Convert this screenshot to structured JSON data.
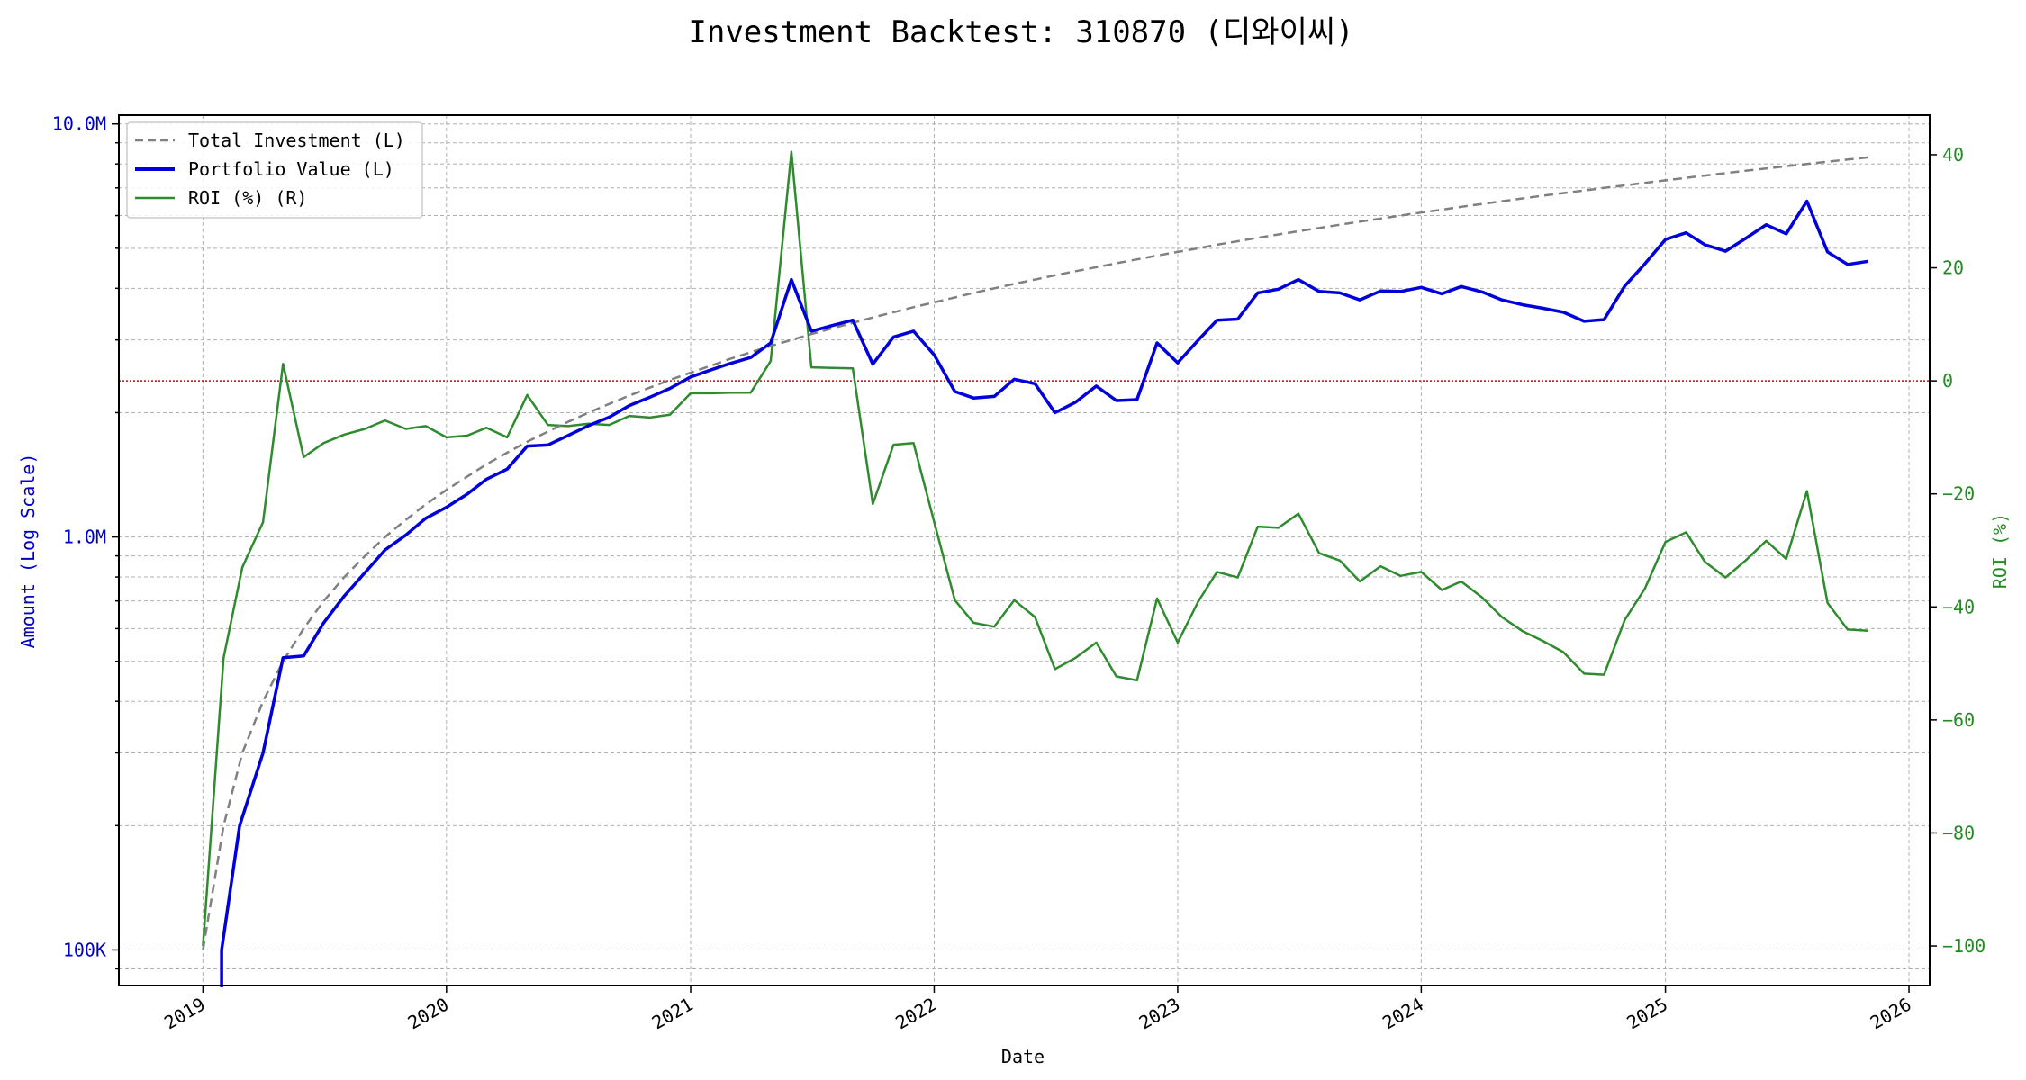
{
  "chart_data": {
    "type": "line",
    "title": "Investment Backtest: 310870 (디와이씨)",
    "xlabel": "Date",
    "ylabel_left": "Amount (Log Scale)",
    "ylabel_right": "ROI (%)",
    "y_left_scale": "log",
    "y_left_range": [
      82000,
      10500000
    ],
    "y_left_ticks": [
      {
        "value": 100000,
        "label": "100K"
      },
      {
        "value": 1000000,
        "label": "1.0M"
      },
      {
        "value": 10000000,
        "label": "10.0M"
      }
    ],
    "y_right_range": [
      -107,
      47
    ],
    "y_right_ticks": [
      {
        "value": 40,
        "label": "40"
      },
      {
        "value": 20,
        "label": "20"
      },
      {
        "value": 0,
        "label": "0"
      },
      {
        "value": -20,
        "label": "−20"
      },
      {
        "value": -40,
        "label": "−40"
      },
      {
        "value": -60,
        "label": "−60"
      },
      {
        "value": -80,
        "label": "−80"
      },
      {
        "value": -100,
        "label": "−100"
      }
    ],
    "x_range": [
      "2018-08-28",
      "2026-02-01"
    ],
    "x_ticks": [
      "2019",
      "2020",
      "2021",
      "2022",
      "2023",
      "2024",
      "2025",
      "2026"
    ],
    "grid": true,
    "legend_position": "top-left",
    "reference_line": {
      "axis": "right",
      "value": 0,
      "color": "#cc0000",
      "style": "dotted"
    },
    "colors": {
      "total_investment": "#808080",
      "portfolio_value": "#0000dd",
      "roi": "#2e8b2e",
      "left_axis": "#0000cc",
      "right_axis": "#228b22"
    },
    "series": [
      {
        "name": "Total Investment (L)",
        "axis": "left",
        "style": "dashed",
        "points": [
          [
            "2019-01-01",
            100000
          ],
          [
            "2019-02-01",
            200000
          ],
          [
            "2019-03-01",
            300000
          ],
          [
            "2019-04-01",
            400000
          ],
          [
            "2019-05-01",
            500000
          ],
          [
            "2019-06-01",
            600000
          ],
          [
            "2019-07-01",
            700000
          ],
          [
            "2019-08-01",
            800000
          ],
          [
            "2019-09-01",
            900000
          ],
          [
            "2019-10-01",
            1000000
          ],
          [
            "2019-11-01",
            1100000
          ],
          [
            "2019-12-01",
            1200000
          ],
          [
            "2020-01-01",
            1300000
          ],
          [
            "2020-02-01",
            1400000
          ],
          [
            "2020-03-01",
            1500000
          ],
          [
            "2020-04-01",
            1600000
          ],
          [
            "2020-05-01",
            1700000
          ],
          [
            "2020-06-01",
            1800000
          ],
          [
            "2020-07-01",
            1900000
          ],
          [
            "2020-08-01",
            2000000
          ],
          [
            "2020-09-01",
            2100000
          ],
          [
            "2020-10-01",
            2200000
          ],
          [
            "2020-11-01",
            2300000
          ],
          [
            "2020-12-01",
            2400000
          ],
          [
            "2021-01-01",
            2500000
          ],
          [
            "2021-02-01",
            2600000
          ],
          [
            "2021-03-01",
            2700000
          ],
          [
            "2021-04-01",
            2800000
          ],
          [
            "2021-05-01",
            2900000
          ],
          [
            "2021-06-01",
            3000000
          ],
          [
            "2021-07-01",
            3100000
          ],
          [
            "2021-08-01",
            3200000
          ],
          [
            "2021-09-01",
            3300000
          ],
          [
            "2021-10-01",
            3400000
          ],
          [
            "2021-11-01",
            3500000
          ],
          [
            "2021-12-01",
            3600000
          ],
          [
            "2022-01-01",
            3700000
          ],
          [
            "2022-02-01",
            3800000
          ],
          [
            "2022-03-01",
            3900000
          ],
          [
            "2022-04-01",
            4000000
          ],
          [
            "2022-05-01",
            4100000
          ],
          [
            "2022-06-01",
            4200000
          ],
          [
            "2022-07-01",
            4300000
          ],
          [
            "2022-08-01",
            4400000
          ],
          [
            "2022-09-01",
            4500000
          ],
          [
            "2022-10-01",
            4600000
          ],
          [
            "2022-11-01",
            4700000
          ],
          [
            "2022-12-01",
            4800000
          ],
          [
            "2023-01-01",
            4900000
          ],
          [
            "2023-02-01",
            5000000
          ],
          [
            "2023-03-01",
            5100000
          ],
          [
            "2023-04-01",
            5200000
          ],
          [
            "2023-05-01",
            5300000
          ],
          [
            "2023-06-01",
            5400000
          ],
          [
            "2023-07-01",
            5500000
          ],
          [
            "2023-08-01",
            5600000
          ],
          [
            "2023-09-01",
            5700000
          ],
          [
            "2023-10-01",
            5800000
          ],
          [
            "2023-11-01",
            5900000
          ],
          [
            "2023-12-01",
            6000000
          ],
          [
            "2024-01-01",
            6100000
          ],
          [
            "2024-02-01",
            6200000
          ],
          [
            "2024-03-01",
            6300000
          ],
          [
            "2024-04-01",
            6400000
          ],
          [
            "2024-05-01",
            6500000
          ],
          [
            "2024-06-01",
            6600000
          ],
          [
            "2024-07-01",
            6700000
          ],
          [
            "2024-08-01",
            6800000
          ],
          [
            "2024-09-01",
            6900000
          ],
          [
            "2024-10-01",
            7000000
          ],
          [
            "2024-11-01",
            7100000
          ],
          [
            "2024-12-01",
            7200000
          ],
          [
            "2025-01-01",
            7300000
          ],
          [
            "2025-02-01",
            7400000
          ],
          [
            "2025-03-01",
            7500000
          ],
          [
            "2025-04-01",
            7600000
          ],
          [
            "2025-05-01",
            7700000
          ],
          [
            "2025-06-01",
            7800000
          ],
          [
            "2025-07-01",
            7900000
          ],
          [
            "2025-08-01",
            8000000
          ],
          [
            "2025-09-01",
            8100000
          ],
          [
            "2025-10-01",
            8200000
          ],
          [
            "2025-11-01",
            8300000
          ]
        ]
      },
      {
        "name": "Portfolio Value (L)",
        "axis": "left",
        "style": "solid-thick",
        "points": [
          [
            "2019-01-29",
            50000
          ],
          [
            "2019-01-29",
            100000
          ],
          [
            "2019-02-25",
            200000
          ],
          [
            "2019-04-01",
            300000
          ],
          [
            "2019-05-01",
            510000
          ],
          [
            "2019-06-01",
            515000
          ],
          [
            "2019-07-01",
            620000
          ],
          [
            "2019-08-01",
            720000
          ],
          [
            "2019-09-01",
            820000
          ],
          [
            "2019-10-01",
            930000
          ],
          [
            "2019-11-01",
            1010000
          ],
          [
            "2019-12-01",
            1110000
          ],
          [
            "2020-01-01",
            1180000
          ],
          [
            "2020-02-01",
            1270000
          ],
          [
            "2020-03-01",
            1380000
          ],
          [
            "2020-04-01",
            1460000
          ],
          [
            "2020-05-01",
            1660000
          ],
          [
            "2020-06-01",
            1670000
          ],
          [
            "2020-07-01",
            1760000
          ],
          [
            "2020-08-01",
            1860000
          ],
          [
            "2020-09-01",
            1950000
          ],
          [
            "2020-10-01",
            2080000
          ],
          [
            "2020-11-01",
            2180000
          ],
          [
            "2020-12-01",
            2290000
          ],
          [
            "2021-01-01",
            2440000
          ],
          [
            "2021-02-01",
            2540000
          ],
          [
            "2021-03-01",
            2630000
          ],
          [
            "2021-04-01",
            2720000
          ],
          [
            "2021-05-01",
            2950000
          ],
          [
            "2021-06-01",
            4200000
          ],
          [
            "2021-07-01",
            3150000
          ],
          [
            "2021-08-01",
            3250000
          ],
          [
            "2021-09-01",
            3350000
          ],
          [
            "2021-10-01",
            2620000
          ],
          [
            "2021-11-01",
            3050000
          ],
          [
            "2021-12-01",
            3150000
          ],
          [
            "2022-01-01",
            2760000
          ],
          [
            "2022-02-01",
            2250000
          ],
          [
            "2022-03-01",
            2170000
          ],
          [
            "2022-04-01",
            2190000
          ],
          [
            "2022-05-01",
            2410000
          ],
          [
            "2022-06-01",
            2350000
          ],
          [
            "2022-07-01",
            2000000
          ],
          [
            "2022-08-01",
            2120000
          ],
          [
            "2022-09-01",
            2320000
          ],
          [
            "2022-10-01",
            2140000
          ],
          [
            "2022-11-01",
            2150000
          ],
          [
            "2022-12-01",
            2950000
          ],
          [
            "2023-01-01",
            2640000
          ],
          [
            "2023-02-01",
            3000000
          ],
          [
            "2023-03-01",
            3350000
          ],
          [
            "2023-04-01",
            3370000
          ],
          [
            "2023-05-01",
            3900000
          ],
          [
            "2023-06-01",
            3980000
          ],
          [
            "2023-07-01",
            4200000
          ],
          [
            "2023-08-01",
            3930000
          ],
          [
            "2023-09-01",
            3900000
          ],
          [
            "2023-10-01",
            3750000
          ],
          [
            "2023-11-01",
            3940000
          ],
          [
            "2023-12-01",
            3930000
          ],
          [
            "2024-01-01",
            4020000
          ],
          [
            "2024-02-01",
            3880000
          ],
          [
            "2024-03-01",
            4040000
          ],
          [
            "2024-04-01",
            3920000
          ],
          [
            "2024-05-01",
            3750000
          ],
          [
            "2024-06-01",
            3650000
          ],
          [
            "2024-07-01",
            3580000
          ],
          [
            "2024-08-01",
            3500000
          ],
          [
            "2024-09-01",
            3330000
          ],
          [
            "2024-10-01",
            3360000
          ],
          [
            "2024-11-01",
            4050000
          ],
          [
            "2024-12-01",
            4580000
          ],
          [
            "2025-01-01",
            5250000
          ],
          [
            "2025-02-01",
            5450000
          ],
          [
            "2025-03-01",
            5100000
          ],
          [
            "2025-04-01",
            4920000
          ],
          [
            "2025-05-01",
            5280000
          ],
          [
            "2025-06-01",
            5700000
          ],
          [
            "2025-07-01",
            5420000
          ],
          [
            "2025-08-01",
            6500000
          ],
          [
            "2025-09-01",
            4900000
          ],
          [
            "2025-10-01",
            4570000
          ],
          [
            "2025-11-01",
            4650000
          ]
        ]
      },
      {
        "name": "ROI (%) (R)",
        "axis": "right",
        "style": "solid",
        "points": [
          [
            "2019-01-01",
            -100
          ],
          [
            "2019-02-01",
            -49
          ],
          [
            "2019-03-01",
            -33
          ],
          [
            "2019-04-01",
            -25
          ],
          [
            "2019-05-01",
            3
          ],
          [
            "2019-06-01",
            -13.5
          ],
          [
            "2019-07-01",
            -11
          ],
          [
            "2019-08-01",
            -9.5
          ],
          [
            "2019-09-01",
            -8.5
          ],
          [
            "2019-10-01",
            -7
          ],
          [
            "2019-11-01",
            -8.5
          ],
          [
            "2019-12-01",
            -8
          ],
          [
            "2020-01-01",
            -10
          ],
          [
            "2020-02-01",
            -9.7
          ],
          [
            "2020-03-01",
            -8.3
          ],
          [
            "2020-04-01",
            -10
          ],
          [
            "2020-05-01",
            -2.5
          ],
          [
            "2020-06-01",
            -7.8
          ],
          [
            "2020-07-01",
            -8
          ],
          [
            "2020-08-01",
            -7.6
          ],
          [
            "2020-09-01",
            -7.8
          ],
          [
            "2020-10-01",
            -6.2
          ],
          [
            "2020-11-01",
            -6.5
          ],
          [
            "2020-12-01",
            -6
          ],
          [
            "2021-01-01",
            -2.2
          ],
          [
            "2021-02-01",
            -2.2
          ],
          [
            "2021-03-01",
            -2.1
          ],
          [
            "2021-04-01",
            -2.1
          ],
          [
            "2021-05-01",
            3.5
          ],
          [
            "2021-06-01",
            40.5
          ],
          [
            "2021-07-01",
            2.4
          ],
          [
            "2021-08-01",
            2.3
          ],
          [
            "2021-09-01",
            2.2
          ],
          [
            "2021-10-01",
            -21.8
          ],
          [
            "2021-11-01",
            -11.3
          ],
          [
            "2021-12-01",
            -11
          ],
          [
            "2022-01-01",
            -25
          ],
          [
            "2022-02-01",
            -38.8
          ],
          [
            "2022-03-01",
            -42.8
          ],
          [
            "2022-04-01",
            -43.5
          ],
          [
            "2022-05-01",
            -38.8
          ],
          [
            "2022-06-01",
            -41.8
          ],
          [
            "2022-07-01",
            -51
          ],
          [
            "2022-08-01",
            -49
          ],
          [
            "2022-09-01",
            -46.3
          ],
          [
            "2022-10-01",
            -52.3
          ],
          [
            "2022-11-01",
            -53
          ],
          [
            "2022-12-01",
            -38.5
          ],
          [
            "2023-01-01",
            -46.3
          ],
          [
            "2023-02-01",
            -39
          ],
          [
            "2023-03-01",
            -33.8
          ],
          [
            "2023-04-01",
            -34.8
          ],
          [
            "2023-05-01",
            -25.8
          ],
          [
            "2023-06-01",
            -26
          ],
          [
            "2023-07-01",
            -23.5
          ],
          [
            "2023-08-01",
            -30.5
          ],
          [
            "2023-09-01",
            -31.8
          ],
          [
            "2023-10-01",
            -35.5
          ],
          [
            "2023-11-01",
            -32.8
          ],
          [
            "2023-12-01",
            -34.5
          ],
          [
            "2024-01-01",
            -33.8
          ],
          [
            "2024-02-01",
            -37
          ],
          [
            "2024-03-01",
            -35.5
          ],
          [
            "2024-04-01",
            -38.3
          ],
          [
            "2024-05-01",
            -41.8
          ],
          [
            "2024-06-01",
            -44.3
          ],
          [
            "2024-07-01",
            -46
          ],
          [
            "2024-08-01",
            -48
          ],
          [
            "2024-09-01",
            -51.8
          ],
          [
            "2024-10-01",
            -52
          ],
          [
            "2024-11-01",
            -42.3
          ],
          [
            "2024-12-01",
            -36.8
          ],
          [
            "2025-01-01",
            -28.5
          ],
          [
            "2025-02-01",
            -26.8
          ],
          [
            "2025-03-01",
            -32
          ],
          [
            "2025-04-01",
            -34.8
          ],
          [
            "2025-05-01",
            -31.8
          ],
          [
            "2025-06-01",
            -28.3
          ],
          [
            "2025-07-01",
            -31.5
          ],
          [
            "2025-08-01",
            -19.5
          ],
          [
            "2025-09-01",
            -39.3
          ],
          [
            "2025-10-01",
            -44
          ],
          [
            "2025-11-01",
            -44.2
          ]
        ]
      }
    ]
  }
}
